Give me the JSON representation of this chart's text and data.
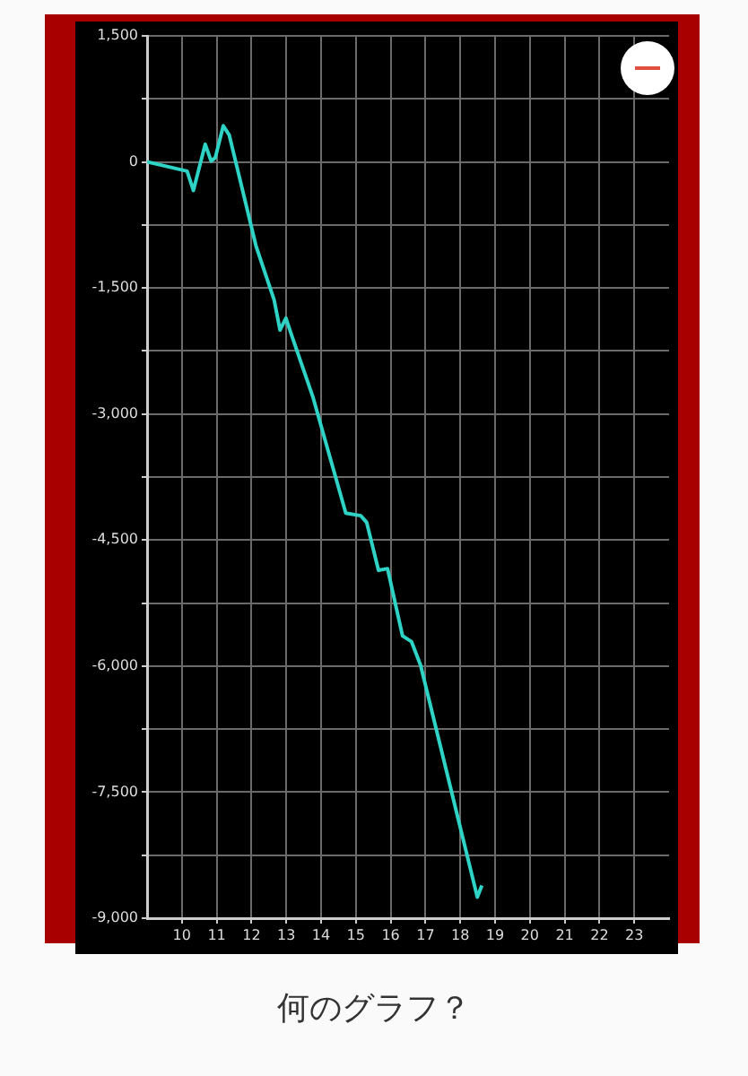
{
  "chart_data": {
    "type": "line",
    "x": [
      9,
      10.15,
      10.33,
      10.67,
      10.84,
      10.96,
      11.19,
      11.36,
      12.13,
      12.65,
      12.82,
      12.99,
      13.16,
      13.76,
      14.71,
      15.14,
      15.31,
      15.65,
      15.91,
      16.34,
      16.6,
      16.86,
      18.49,
      18.62
    ],
    "series": [
      {
        "color": "#2ed3c6",
        "values": [
          0,
          -110,
          -340,
          210,
          10,
          50,
          430,
          320,
          -1000,
          -1640,
          -2000,
          -1860,
          -2070,
          -2790,
          -4180,
          -4210,
          -4290,
          -4860,
          -4840,
          -5640,
          -5710,
          -5990,
          -8750,
          -8610
        ]
      }
    ],
    "xlim": [
      9,
      24
    ],
    "xticks": [
      10,
      11,
      12,
      13,
      14,
      15,
      16,
      17,
      18,
      19,
      20,
      21,
      22,
      23
    ],
    "ylim": [
      -9000,
      1500
    ],
    "yticks": [
      {
        "value": -9000,
        "label": "-9,000"
      },
      {
        "value": -8250,
        "label": null
      },
      {
        "value": -7500,
        "label": "-7,500"
      },
      {
        "value": -6750,
        "label": null
      },
      {
        "value": -6000,
        "label": "-6,000"
      },
      {
        "value": -5250,
        "label": null
      },
      {
        "value": -4500,
        "label": "-4,500"
      },
      {
        "value": -3750,
        "label": null
      },
      {
        "value": -3000,
        "label": "-3,000"
      },
      {
        "value": -2250,
        "label": null
      },
      {
        "value": -1500,
        "label": "-1,500"
      },
      {
        "value": -750,
        "label": null
      },
      0,
      {
        "value": 750,
        "label": null
      },
      {
        "value": 1500,
        "label": "1,500"
      }
    ],
    "grid": true,
    "legend": false,
    "marker": "none",
    "line_style": "solid",
    "annotations": [
      "何のグラフ？"
    ]
  }
}
